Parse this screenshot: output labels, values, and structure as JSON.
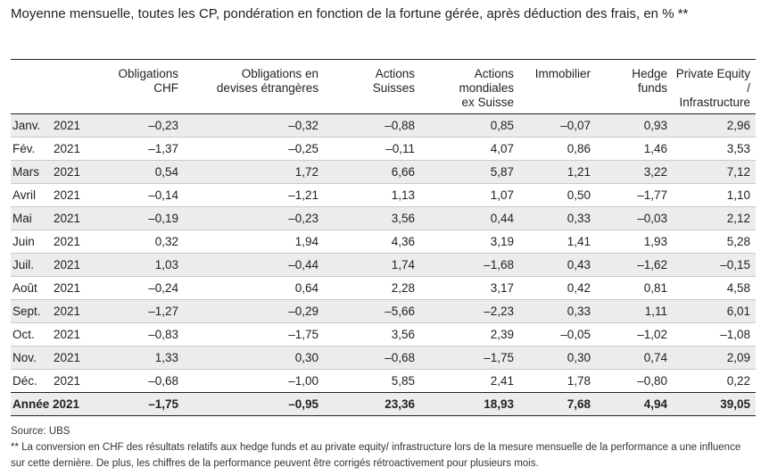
{
  "title": "Moyenne mensuelle, toutes les CP, pondération en fonction de la fortune gérée, après déduction des frais, en % **",
  "columns": [
    "Obligations\nCHF",
    "Obligations en\ndevises étrangères",
    "Actions\nSuisses",
    "Actions\nmondiales\nex Suisse",
    "Immobilier",
    "Hedge\nfunds",
    "Private Equity /\nInfrastructure"
  ],
  "rows": [
    {
      "month": "Janv.",
      "year": "2021",
      "values": [
        "–0,23",
        "–0,32",
        "–0,88",
        "0,85",
        "–0,07",
        "0,93",
        "2,96"
      ]
    },
    {
      "month": "Fév.",
      "year": "2021",
      "values": [
        "–1,37",
        "–0,25",
        "–0,11",
        "4,07",
        "0,86",
        "1,46",
        "3,53"
      ]
    },
    {
      "month": "Mars",
      "year": "2021",
      "values": [
        "0,54",
        "1,72",
        "6,66",
        "5,87",
        "1,21",
        "3,22",
        "7,12"
      ]
    },
    {
      "month": "Avril",
      "year": "2021",
      "values": [
        "–0,14",
        "–1,21",
        "1,13",
        "1,07",
        "0,50",
        "–1,77",
        "1,10"
      ]
    },
    {
      "month": "Mai",
      "year": "2021",
      "values": [
        "–0,19",
        "–0,23",
        "3,56",
        "0,44",
        "0,33",
        "–0,03",
        "2,12"
      ]
    },
    {
      "month": "Juin",
      "year": "2021",
      "values": [
        "0,32",
        "1,94",
        "4,36",
        "3,19",
        "1,41",
        "1,93",
        "5,28"
      ]
    },
    {
      "month": "Juil.",
      "year": "2021",
      "values": [
        "1,03",
        "–0,44",
        "1,74",
        "–1,68",
        "0,43",
        "–1,62",
        "–0,15"
      ]
    },
    {
      "month": "Août",
      "year": "2021",
      "values": [
        "–0,24",
        "0,64",
        "2,28",
        "3,17",
        "0,42",
        "0,81",
        "4,58"
      ]
    },
    {
      "month": "Sept.",
      "year": "2021",
      "values": [
        "–1,27",
        "–0,29",
        "–5,66",
        "–2,23",
        "0,33",
        "1,11",
        "6,01"
      ]
    },
    {
      "month": "Oct.",
      "year": "2021",
      "values": [
        "–0,83",
        "–1,75",
        "3,56",
        "2,39",
        "–0,05",
        "–1,02",
        "–1,08"
      ]
    },
    {
      "month": "Nov.",
      "year": "2021",
      "values": [
        "1,33",
        "0,30",
        "–0,68",
        "–1,75",
        "0,30",
        "0,74",
        "2,09"
      ]
    },
    {
      "month": "Déc.",
      "year": "2021",
      "values": [
        "–0,68",
        "–1,00",
        "5,85",
        "2,41",
        "1,78",
        "–0,80",
        "0,22"
      ]
    }
  ],
  "total": {
    "label": "Année 2021",
    "values": [
      "–1,75",
      "–0,95",
      "23,36",
      "18,93",
      "7,68",
      "4,94",
      "39,05"
    ]
  },
  "source": "Source: UBS",
  "footnote": "** La conversion en CHF des résultats relatifs aux hedge funds et au private equity/ infrastructure lors de la mesure mensuelle de la performance a une influence sur cette dernière. De plus, les chiffres de la performance peuvent être corrigés rétroactivement pour plusieurs mois."
}
